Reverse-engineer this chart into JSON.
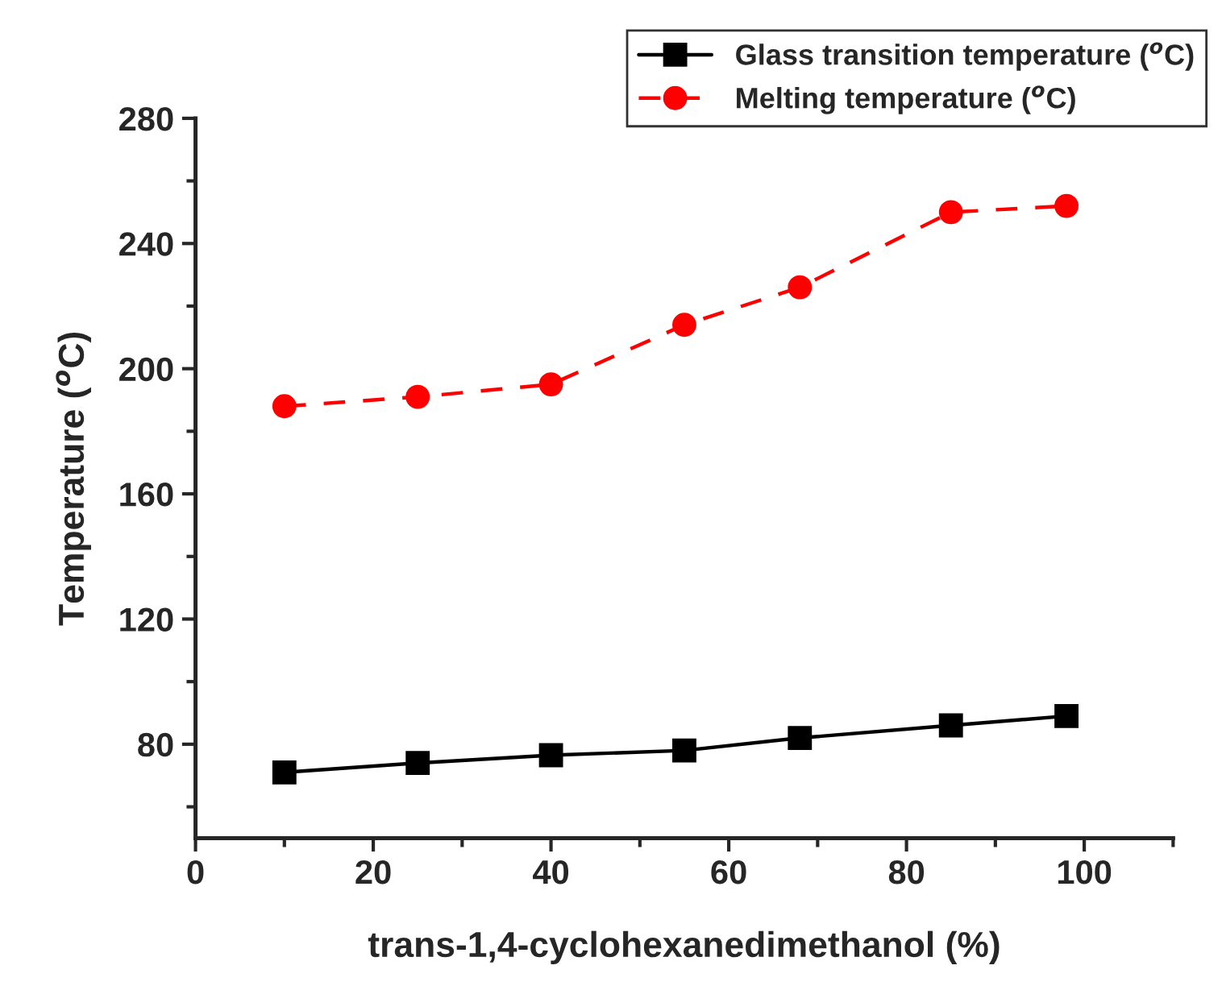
{
  "chart_data": {
    "type": "line",
    "xlabel": "trans-1,4-cyclohexanedimethanol (%)",
    "ylabel": "Temperature ($^{o}$C)",
    "x": [
      10,
      25,
      40,
      55,
      68,
      85,
      98
    ],
    "series": [
      {
        "name": "Glass transition temperature ($^{o}$C)",
        "color": "#000000",
        "marker": "square",
        "line_style": "solid",
        "values": [
          71,
          74,
          76.5,
          78,
          82,
          86,
          89
        ]
      },
      {
        "name": "Melting temperature ($^{o}$C)",
        "color": "#ff0000",
        "marker": "circle",
        "line_style": "dashed",
        "values": [
          188,
          191,
          195,
          214,
          226,
          250,
          252
        ]
      }
    ],
    "xlim": [
      0,
      110
    ],
    "xticks": [
      0,
      20,
      40,
      60,
      80,
      100
    ],
    "ylim": [
      50,
      280
    ],
    "yticks": [
      80,
      120,
      160,
      200,
      240,
      280
    ],
    "grid": false,
    "legend": "top right"
  }
}
